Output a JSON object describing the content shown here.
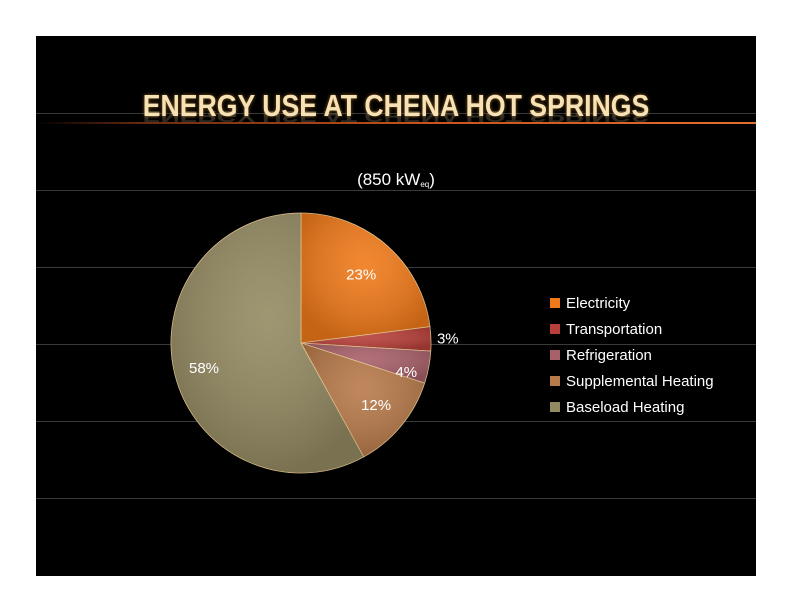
{
  "slide": {
    "title": "ENERGY USE AT CHENA HOT SPRINGS",
    "subtitle_main": "(850 kW",
    "subtitle_sub": "eq",
    "subtitle_end": ")",
    "background": "#000000",
    "title_color": "#f6e2b4"
  },
  "chart_data": {
    "type": "pie",
    "categories": [
      "Electricity",
      "Transportation",
      "Refrigeration",
      "Supplemental Heating",
      "Baseload Heating"
    ],
    "values": [
      23,
      3,
      4,
      12,
      58
    ],
    "data_labels": [
      "23%",
      "3%",
      "4%",
      "12%",
      "58%"
    ],
    "colors": [
      "#f07a1a",
      "#b8403a",
      "#a8606a",
      "#b87a4a",
      "#948a62"
    ],
    "legend_placement": "right",
    "start_angle_deg": 0,
    "direction": "clockwise"
  }
}
